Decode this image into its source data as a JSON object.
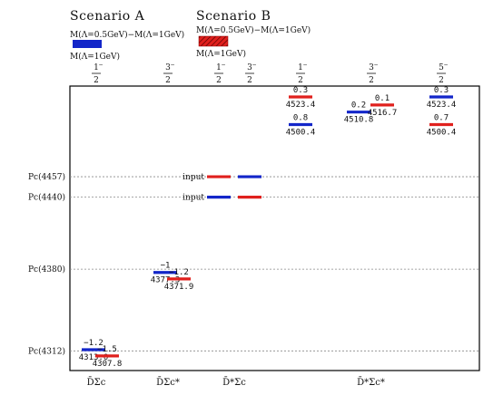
{
  "colors": {
    "scenario_a": "#1326c9",
    "scenario_b": "#e0201d",
    "frame": "#000000",
    "guide": "#888888"
  },
  "legend": {
    "scenario_a_title": "Scenario A",
    "scenario_b_title": "Scenario B",
    "diff_label": "M(Λ=0.5GeV)−M(Λ=1GeV)",
    "base_label": "M(Λ=1GeV)"
  },
  "chart_data": {
    "type": "energy-level",
    "ylim": [
      4300,
      4530
    ],
    "grid": "dotted horizontal lines at reference states",
    "legend_position": "top-left",
    "columns": [
      {
        "jp_num": "1",
        "jp_sign": "−",
        "jp_den": "2"
      },
      {
        "jp_num": "3",
        "jp_sign": "−",
        "jp_den": "2"
      },
      {
        "jp_num": "1",
        "jp_sign": "−",
        "jp_den": "2"
      },
      {
        "jp_num": "3",
        "jp_sign": "−",
        "jp_den": "2"
      },
      {
        "jp_num": "1",
        "jp_sign": "−",
        "jp_den": "2"
      },
      {
        "jp_num": "3",
        "jp_sign": "−",
        "jp_den": "2"
      },
      {
        "jp_num": "5",
        "jp_sign": "−",
        "jp_den": "2"
      }
    ],
    "channel_labels": [
      {
        "text": "D̄Σc",
        "column_span": [
          0,
          0
        ]
      },
      {
        "text": "D̄Σc*",
        "column_span": [
          1,
          1
        ]
      },
      {
        "text": "D̄*Σc",
        "column_span": [
          2,
          3
        ]
      },
      {
        "text": "D̄*Σc*",
        "column_span": [
          4,
          6
        ]
      }
    ],
    "reference_states": [
      {
        "label": "Pc(4457)",
        "mass": 4457
      },
      {
        "label": "Pc(4440)",
        "mass": 4440
      },
      {
        "label": "Pc(4380)",
        "mass": 4380
      },
      {
        "label": "Pc(4312)",
        "mass": 4312
      }
    ],
    "series": [
      {
        "name": "Scenario A",
        "levels": [
          {
            "column": 0,
            "mass": 4313.0,
            "mass_label": "4313.0",
            "diff_label": "−1.2"
          },
          {
            "column": 1,
            "mass": 4377.3,
            "mass_label": "4377.3",
            "diff_label": "−1"
          },
          {
            "column": 2,
            "mass": 4440,
            "mass_label": "",
            "diff_label": ""
          },
          {
            "column": 3,
            "mass": 4457,
            "mass_label": "",
            "diff_label": ""
          },
          {
            "column": 4,
            "mass": 4500.4,
            "mass_label": "4500.4",
            "diff_label": "0.8"
          },
          {
            "column": 5,
            "mass": 4510.8,
            "mass_label": "4510.8",
            "diff_label": "0.2"
          },
          {
            "column": 6,
            "mass": 4523.4,
            "mass_label": "4523.4",
            "diff_label": "0.3"
          }
        ]
      },
      {
        "name": "Scenario B",
        "levels": [
          {
            "column": 0,
            "mass": 4307.8,
            "mass_label": "4307.8",
            "diff_label": "−1.5"
          },
          {
            "column": 1,
            "mass": 4371.9,
            "mass_label": "4371.9",
            "diff_label": "−1.2"
          },
          {
            "column": 2,
            "mass": 4457,
            "mass_label": "",
            "diff_label": ""
          },
          {
            "column": 3,
            "mass": 4440,
            "mass_label": "",
            "diff_label": ""
          },
          {
            "column": 4,
            "mass": 4523.4,
            "mass_label": "4523.4",
            "diff_label": "0.3"
          },
          {
            "column": 5,
            "mass": 4516.7,
            "mass_label": "4516.7",
            "diff_label": "0.1"
          },
          {
            "column": 6,
            "mass": 4500.4,
            "mass_label": "4500.4",
            "diff_label": "0.7"
          }
        ]
      }
    ],
    "annotations": [
      {
        "text": "input",
        "mass": 4457
      },
      {
        "text": "input",
        "mass": 4440
      }
    ]
  }
}
